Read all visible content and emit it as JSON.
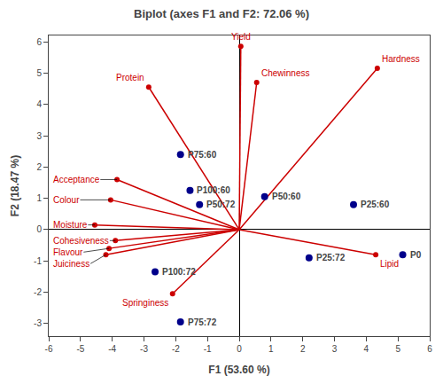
{
  "chart_data": {
    "type": "biplot",
    "title": "Biplot (axes F1 and F2: 72.06 %)",
    "xlabel": "F1 (53.60 %)",
    "ylabel": "F2 (18.47 %)",
    "xlim": [
      -6,
      6
    ],
    "ylim": [
      -3.4,
      6.2
    ],
    "xticks": [
      -6,
      -5,
      -4,
      -3,
      -2,
      -1,
      0,
      1,
      2,
      3,
      4,
      5,
      6
    ],
    "yticks": [
      -3,
      -2,
      -1,
      0,
      1,
      2,
      3,
      4,
      5,
      6
    ],
    "grid": false,
    "series": [
      {
        "type": "vector",
        "color": "#CC0000",
        "labels": [
          "Yield",
          "Chewinness",
          "Hardness",
          "Protein",
          "Acceptance",
          "Colour",
          "Moisture",
          "Cohesiveness",
          "Flavour",
          "Juiciness",
          "Springiness",
          "Lipid"
        ],
        "x": [
          0.05,
          0.55,
          4.35,
          -2.85,
          -3.85,
          -4.05,
          -4.55,
          -3.9,
          -4.1,
          -4.2,
          -2.1,
          4.3
        ],
        "y": [
          5.85,
          4.7,
          5.15,
          4.55,
          1.6,
          0.95,
          0.15,
          -0.35,
          -0.6,
          -0.8,
          -2.05,
          -0.8
        ]
      },
      {
        "type": "scatter",
        "color": "#00008B",
        "labels": [
          "P75:60",
          "P100:60",
          "P50:72",
          "P50:60",
          "P25:60",
          "P0",
          "P25:72",
          "P100:72",
          "P75:72"
        ],
        "x": [
          -1.85,
          -1.55,
          -1.25,
          0.8,
          3.6,
          5.15,
          2.2,
          -2.65,
          -1.85
        ],
        "y": [
          2.4,
          1.25,
          0.8,
          1.05,
          0.8,
          -0.8,
          -0.9,
          -1.35,
          -2.95
        ]
      }
    ]
  }
}
